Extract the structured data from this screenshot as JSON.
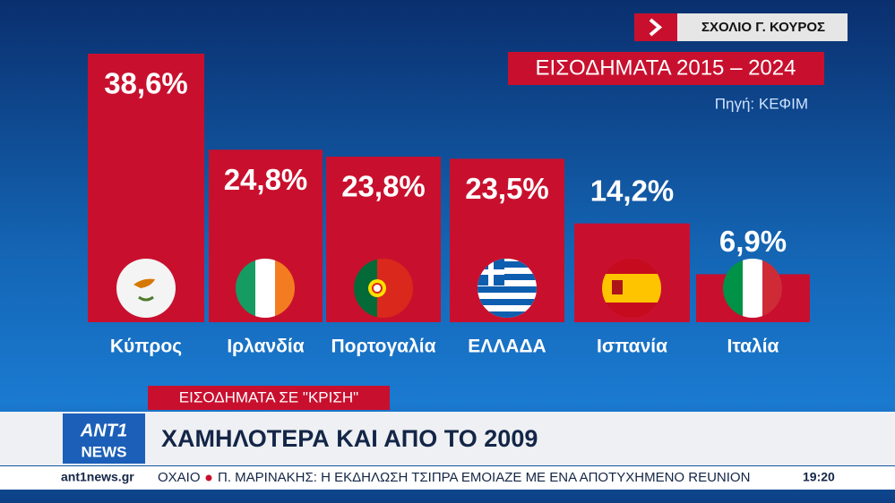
{
  "chart_data": {
    "type": "bar",
    "title": "ΕΙΣΟΔΗΜΑΤΑ 2015 – 2024",
    "subtitle": "Πηγή: ΚΕΦΙΜ",
    "categories": [
      "Κύπρος",
      "Ιρλανδία",
      "Πορτογαλία",
      "ΕΛΛΑΔΑ",
      "Ισπανία",
      "Ιταλία"
    ],
    "values": [
      38.6,
      24.8,
      23.8,
      23.5,
      14.2,
      6.9
    ],
    "value_labels": [
      "38,6%",
      "24,8%",
      "23,8%",
      "23,5%",
      "14,2%",
      "6,9%"
    ],
    "color": "#c8102e"
  },
  "overlay": {
    "commentary": "ΣΧΟΛΙΟ Γ. ΚΟΥΡΟΣ",
    "tag": "ΕΙΣΟΔΗΜΑΤΑ ΣΕ \"ΚΡΙΣΗ\"",
    "headline": "ΧΑΜΗΛΟΤΕΡΑ ΚΑΙ ΑΠΟ ΤΟ 2009",
    "logo": [
      "ANT1",
      "NEWS"
    ],
    "ticker": {
      "site": "ant1news.gr",
      "fragment": "ΟΧΑΙΟ",
      "story": "Π. ΜΑΡΙΝΑΚΗΣ: Η ΕΚΔΗΛΩΣΗ ΤΣΙΠΡΑ ΕΜΟΙΑΖΕ ΜΕ ΕΝΑ ΑΠΟΤΥΧΗΜΕΝΟ REUNION",
      "time": "19:20"
    }
  }
}
